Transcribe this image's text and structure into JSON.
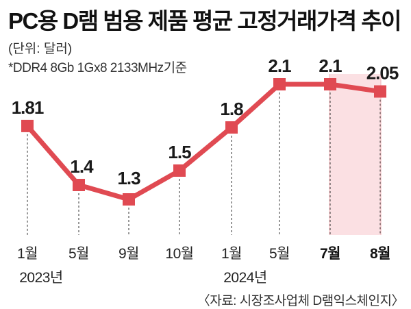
{
  "header": {
    "title": "PC용 D램 범용 제품 평균 고정거래가격 추이",
    "unit": "(단위: 달러)",
    "note": "*DDR4 8Gb 1Gx8 2133MHz기준"
  },
  "footer": {
    "source": "〈자료: 시장조사업체 D램익스체인지〉"
  },
  "colors": {
    "line": "#e04a52",
    "marker": "#e04a52",
    "highlight": "#fbe0e3",
    "highlight_border": "#f2b4ba",
    "dash": "#333333"
  },
  "chart_data": {
    "type": "line",
    "title": "PC용 D램 범용 제품 평균 고정거래가격 추이",
    "categories": [
      "1월",
      "5월",
      "9월",
      "10월",
      "1월",
      "5월",
      "7월",
      "8월"
    ],
    "year_labels": [
      {
        "index": 0,
        "text": "2023년"
      },
      {
        "index": 4,
        "text": "2024년"
      }
    ],
    "values": [
      1.81,
      1.4,
      1.3,
      1.5,
      1.8,
      2.1,
      2.1,
      2.05
    ],
    "data_labels": [
      "1.81",
      "1.4",
      "1.3",
      "1.5",
      "1.8",
      "2.1",
      "2.1",
      "2.05"
    ],
    "bold_categories": [
      6,
      7
    ],
    "highlight_range": [
      6,
      7
    ],
    "xlabel": "",
    "ylabel": "",
    "ylim": [
      1.0,
      2.3
    ],
    "grid": false,
    "legend": "none"
  }
}
